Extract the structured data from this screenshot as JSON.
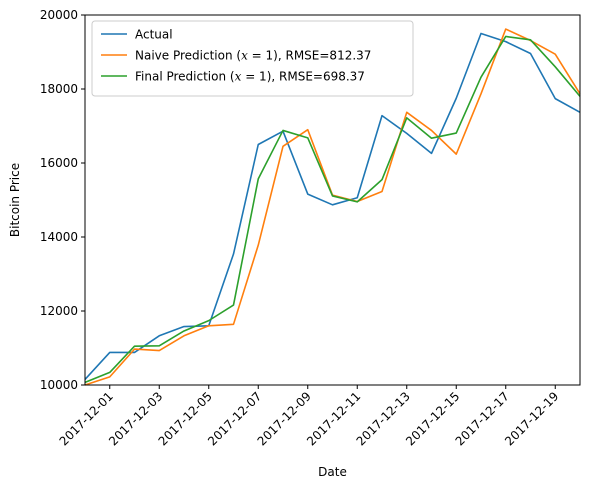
{
  "chart_data": {
    "type": "line",
    "xlabel": "Date",
    "ylabel": "Bitcoin Price",
    "x": [
      "2017-11-30",
      "2017-12-01",
      "2017-12-02",
      "2017-12-03",
      "2017-12-04",
      "2017-12-05",
      "2017-12-06",
      "2017-12-07",
      "2017-12-08",
      "2017-12-09",
      "2017-12-10",
      "2017-12-11",
      "2017-12-12",
      "2017-12-13",
      "2017-12-14",
      "2017-12-15",
      "2017-12-16",
      "2017-12-17",
      "2017-12-18",
      "2017-12-19",
      "2017-12-20"
    ],
    "xticks": [
      "2017-12-01",
      "2017-12-03",
      "2017-12-05",
      "2017-12-07",
      "2017-12-09",
      "2017-12-11",
      "2017-12-13",
      "2017-12-15",
      "2017-12-17",
      "2017-12-19"
    ],
    "xlim": [
      "2017-11-30",
      "2017-12-20"
    ],
    "ylim": [
      10000,
      20000
    ],
    "yticks": [
      10000,
      12000,
      14000,
      16000,
      18000,
      20000
    ],
    "grid": false,
    "legend_position": "top-left",
    "series": [
      {
        "name": "Actual",
        "color": "#1f77b4",
        "values": [
          10150,
          10880,
          10880,
          11330,
          11580,
          11600,
          13540,
          16500,
          16860,
          15160,
          14870,
          15060,
          17280,
          16800,
          16260,
          17750,
          19500,
          19280,
          18960,
          17740,
          17370
        ]
      },
      {
        "name": "Naive Prediction ($x=1$), RMSE=812.37",
        "name_prefix": "Naive Prediction (",
        "name_math": "x",
        "name_suffix": " = 1), RMSE=812.37",
        "color": "#ff7f0e",
        "values": [
          10000,
          10220,
          10970,
          10930,
          11330,
          11600,
          11640,
          13780,
          16450,
          16900,
          15130,
          14960,
          15230,
          17370,
          16880,
          16240,
          17870,
          19620,
          19310,
          18940,
          17870
        ]
      },
      {
        "name": "Final Prediction ($x=1$), RMSE=698.37",
        "name_prefix": "Final Prediction (",
        "name_math": "x",
        "name_suffix": " = 1), RMSE=698.37",
        "color": "#2ca02c",
        "values": [
          10070,
          10340,
          11050,
          11060,
          11460,
          11740,
          12160,
          15570,
          16880,
          16680,
          15110,
          14950,
          15550,
          17220,
          16670,
          16810,
          18320,
          19420,
          19330,
          18600,
          17800
        ]
      }
    ]
  }
}
